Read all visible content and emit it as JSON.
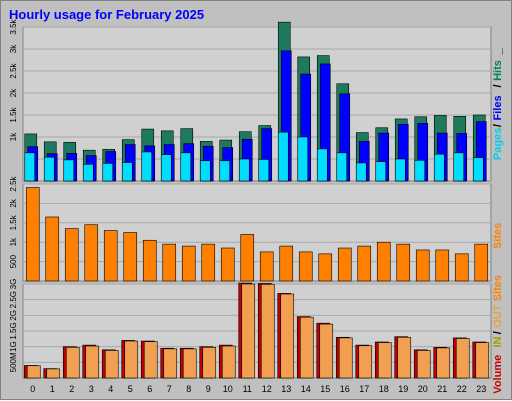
{
  "chart_data": {
    "type": "bar",
    "title": "Hourly usage for February 2025",
    "categories": [
      "0",
      "1",
      "2",
      "3",
      "4",
      "5",
      "6",
      "7",
      "8",
      "9",
      "10",
      "11",
      "12",
      "13",
      "14",
      "15",
      "16",
      "17",
      "18",
      "19",
      "20",
      "21",
      "22",
      "23"
    ],
    "panels": [
      {
        "id": "hits",
        "ylabel": [
          "Pages",
          "/",
          "Files",
          "/",
          "Hits",
          "_"
        ],
        "ylabel_colors": [
          "#00ccee",
          "#000000",
          "#0000ff",
          "#000000",
          "#00805a",
          "#000000"
        ],
        "ylim": [
          0,
          3500
        ],
        "ticks": [
          500,
          1000,
          1500,
          2000,
          2500,
          3000,
          3500
        ],
        "tick_labels": [
          "",
          "1k",
          "1.5k",
          "2k",
          "2.5k",
          "3k",
          "3.5k"
        ],
        "series": [
          {
            "name": "Hits",
            "color": "#1e7a5e",
            "values": [
              1070,
              890,
              880,
              700,
              720,
              940,
              1180,
              1140,
              1190,
              900,
              930,
              1120,
              1260,
              3610,
              2820,
              2850,
              2210,
              1100,
              1210,
              1410,
              1460,
              1490,
              1470,
              1500
            ]
          },
          {
            "name": "Files",
            "color": "#0000ff",
            "values": [
              780,
              620,
              630,
              580,
              670,
              830,
              800,
              830,
              850,
              790,
              760,
              950,
              1190,
              2960,
              2430,
              2660,
              1980,
              900,
              1090,
              1290,
              1310,
              1090,
              1080,
              1350
            ]
          },
          {
            "name": "Pages",
            "color": "#00ddff",
            "values": [
              640,
              540,
              480,
              380,
              400,
              420,
              660,
              600,
              640,
              460,
              460,
              500,
              490,
              1110,
              1000,
              730,
              640,
              410,
              440,
              500,
              470,
              610,
              640,
              530
            ]
          }
        ]
      },
      {
        "id": "sites",
        "ylabel": [
          "Sites"
        ],
        "ylabel_colors": [
          "#ff8000"
        ],
        "ylim": [
          0,
          2500
        ],
        "ticks": [
          500,
          1000,
          1500,
          2000,
          2500
        ],
        "tick_labels": [
          "500",
          "1k",
          "1.5k",
          "2k",
          "2.5k"
        ],
        "series": [
          {
            "name": "Sites",
            "color": "#ff8000",
            "values": [
              2410,
              1650,
              1350,
              1450,
              1300,
              1250,
              1050,
              950,
              900,
              950,
              850,
              1200,
              750,
              900,
              750,
              700,
              850,
              900,
              1000,
              950,
              800,
              800,
              700,
              950
            ]
          }
        ]
      },
      {
        "id": "volume",
        "ylabel": [
          "Volume",
          " ",
          "IN",
          "/",
          "OUT",
          " ",
          "Sites"
        ],
        "ylabel_colors": [
          "#cc0000",
          "#000000",
          "#a0a000",
          "#000000",
          "#e8a040",
          "#000000",
          "#ff8000"
        ],
        "ylim": [
          0,
          3000
        ],
        "ticks": [
          500,
          1000,
          1500,
          2000,
          2500,
          3000
        ],
        "tick_labels": [
          "500M",
          "1G",
          "1.5G",
          "2G",
          "2.5G",
          "3G"
        ],
        "series": [
          {
            "name": "Volume",
            "color": "#c00000",
            "values": [
              400,
              300,
              1000,
              1050,
              900,
              1200,
              1180,
              950,
              950,
              1000,
              1050,
              3030,
              3020,
              2700,
              1960,
              1750,
              1300,
              1050,
              1150,
              1320,
              900,
              980,
              1280,
              1150
            ]
          },
          {
            "name": "Out",
            "color": "#f0a050",
            "values": [
              390,
              290,
              980,
              1020,
              880,
              1180,
              1160,
              930,
              930,
              980,
              1020,
              3000,
              2990,
              2680,
              1940,
              1720,
              1280,
              1030,
              1130,
              1300,
              880,
              960,
              1260,
              1130
            ]
          }
        ]
      }
    ],
    "grid": true
  }
}
